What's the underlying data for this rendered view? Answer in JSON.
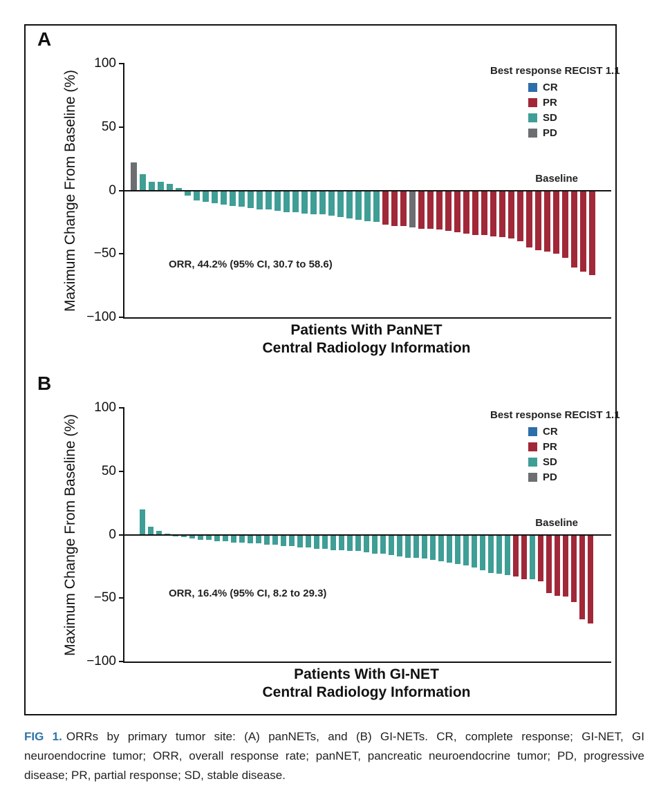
{
  "figure": {
    "panel_a_label": "A",
    "panel_b_label": "B",
    "caption": {
      "tag": "FIG 1.",
      "text": "ORRs by primary tumor site: (A) panNETs, and (B) GI-NETs. CR, complete response; GI-NET, GI neuroendocrine tumor; ORR, overall response rate; panNET, pancreatic neuroendocrine tumor; PD, progressive disease; PR, partial response; SD, stable disease."
    }
  },
  "colors": {
    "CR": "#2d6eaa",
    "PR": "#a02838",
    "SD": "#3f9e96",
    "PD": "#6d6e71",
    "axis": "#111111",
    "caption_tag": "#2e74a8"
  },
  "chart_data": [
    {
      "type": "bar",
      "panel": "A",
      "ylabel": "Maximum Change From Baseline (%)",
      "xlabel_line1": "Patients With PanNET",
      "xlabel_line2": "Central Radiology Information",
      "ylim": [
        -100,
        100
      ],
      "yticks": [
        100,
        50,
        0,
        -50,
        -100
      ],
      "ytick_labels": [
        "100",
        "50",
        "0",
        "−50",
        "−100"
      ],
      "baseline_label": "Baseline",
      "annotation": "ORR, 44.2% (95% CI, 30.7 to 58.6)",
      "legend": {
        "title": "Best response RECIST 1.1",
        "entries": [
          "CR",
          "PR",
          "SD",
          "PD"
        ],
        "position": "top-right"
      },
      "bars": [
        {
          "v": 22,
          "r": "PD"
        },
        {
          "v": 13,
          "r": "SD"
        },
        {
          "v": 7,
          "r": "SD"
        },
        {
          "v": 7,
          "r": "SD"
        },
        {
          "v": 5,
          "r": "SD"
        },
        {
          "v": 2,
          "r": "SD"
        },
        {
          "v": -4,
          "r": "SD"
        },
        {
          "v": -8,
          "r": "SD"
        },
        {
          "v": -9,
          "r": "SD"
        },
        {
          "v": -10,
          "r": "SD"
        },
        {
          "v": -11,
          "r": "SD"
        },
        {
          "v": -12,
          "r": "SD"
        },
        {
          "v": -13,
          "r": "SD"
        },
        {
          "v": -14,
          "r": "SD"
        },
        {
          "v": -15,
          "r": "SD"
        },
        {
          "v": -15,
          "r": "SD"
        },
        {
          "v": -16,
          "r": "SD"
        },
        {
          "v": -17,
          "r": "SD"
        },
        {
          "v": -17,
          "r": "SD"
        },
        {
          "v": -18,
          "r": "SD"
        },
        {
          "v": -19,
          "r": "SD"
        },
        {
          "v": -19,
          "r": "SD"
        },
        {
          "v": -20,
          "r": "SD"
        },
        {
          "v": -21,
          "r": "SD"
        },
        {
          "v": -22,
          "r": "SD"
        },
        {
          "v": -23,
          "r": "SD"
        },
        {
          "v": -24,
          "r": "SD"
        },
        {
          "v": -25,
          "r": "SD"
        },
        {
          "v": -27,
          "r": "PR"
        },
        {
          "v": -28,
          "r": "PR"
        },
        {
          "v": -28,
          "r": "PR"
        },
        {
          "v": -29,
          "r": "PD"
        },
        {
          "v": -30,
          "r": "PR"
        },
        {
          "v": -30,
          "r": "PR"
        },
        {
          "v": -31,
          "r": "PR"
        },
        {
          "v": -32,
          "r": "PR"
        },
        {
          "v": -33,
          "r": "PR"
        },
        {
          "v": -34,
          "r": "PR"
        },
        {
          "v": -35,
          "r": "PR"
        },
        {
          "v": -35,
          "r": "PR"
        },
        {
          "v": -36,
          "r": "PR"
        },
        {
          "v": -37,
          "r": "PR"
        },
        {
          "v": -38,
          "r": "PR"
        },
        {
          "v": -40,
          "r": "PR"
        },
        {
          "v": -45,
          "r": "PR"
        },
        {
          "v": -47,
          "r": "PR"
        },
        {
          "v": -48,
          "r": "PR"
        },
        {
          "v": -50,
          "r": "PR"
        },
        {
          "v": -53,
          "r": "PR"
        },
        {
          "v": -61,
          "r": "PR"
        },
        {
          "v": -64,
          "r": "PR"
        },
        {
          "v": -67,
          "r": "PR"
        }
      ]
    },
    {
      "type": "bar",
      "panel": "B",
      "ylabel": "Maximum Change From Baseline (%)",
      "xlabel_line1": "Patients With GI-NET",
      "xlabel_line2": "Central Radiology Information",
      "ylim": [
        -100,
        100
      ],
      "yticks": [
        100,
        50,
        0,
        -50,
        -100
      ],
      "ytick_labels": [
        "100",
        "50",
        "0",
        "−50",
        "−100"
      ],
      "baseline_label": "Baseline",
      "annotation": "ORR, 16.4% (95% CI, 8.2 to 29.3)",
      "legend": {
        "title": "Best response RECIST 1.1",
        "entries": [
          "CR",
          "PR",
          "SD",
          "PD"
        ],
        "position": "top-right"
      },
      "bars": [
        {
          "v": 20,
          "r": "SD"
        },
        {
          "v": 6,
          "r": "SD"
        },
        {
          "v": 3,
          "r": "SD"
        },
        {
          "v": 1,
          "r": "SD"
        },
        {
          "v": -1,
          "r": "SD"
        },
        {
          "v": -2,
          "r": "SD"
        },
        {
          "v": -3,
          "r": "SD"
        },
        {
          "v": -4,
          "r": "SD"
        },
        {
          "v": -4,
          "r": "SD"
        },
        {
          "v": -5,
          "r": "SD"
        },
        {
          "v": -5,
          "r": "SD"
        },
        {
          "v": -6,
          "r": "SD"
        },
        {
          "v": -6,
          "r": "SD"
        },
        {
          "v": -7,
          "r": "SD"
        },
        {
          "v": -7,
          "r": "SD"
        },
        {
          "v": -8,
          "r": "SD"
        },
        {
          "v": -8,
          "r": "SD"
        },
        {
          "v": -9,
          "r": "SD"
        },
        {
          "v": -9,
          "r": "SD"
        },
        {
          "v": -10,
          "r": "SD"
        },
        {
          "v": -10,
          "r": "SD"
        },
        {
          "v": -11,
          "r": "SD"
        },
        {
          "v": -11,
          "r": "SD"
        },
        {
          "v": -12,
          "r": "SD"
        },
        {
          "v": -12,
          "r": "SD"
        },
        {
          "v": -13,
          "r": "SD"
        },
        {
          "v": -13,
          "r": "SD"
        },
        {
          "v": -14,
          "r": "SD"
        },
        {
          "v": -15,
          "r": "SD"
        },
        {
          "v": -15,
          "r": "SD"
        },
        {
          "v": -16,
          "r": "SD"
        },
        {
          "v": -17,
          "r": "SD"
        },
        {
          "v": -18,
          "r": "SD"
        },
        {
          "v": -18,
          "r": "SD"
        },
        {
          "v": -19,
          "r": "SD"
        },
        {
          "v": -20,
          "r": "SD"
        },
        {
          "v": -21,
          "r": "SD"
        },
        {
          "v": -22,
          "r": "SD"
        },
        {
          "v": -23,
          "r": "SD"
        },
        {
          "v": -24,
          "r": "SD"
        },
        {
          "v": -26,
          "r": "SD"
        },
        {
          "v": -28,
          "r": "SD"
        },
        {
          "v": -30,
          "r": "SD"
        },
        {
          "v": -31,
          "r": "SD"
        },
        {
          "v": -32,
          "r": "SD"
        },
        {
          "v": -33,
          "r": "PR"
        },
        {
          "v": -35,
          "r": "PR"
        },
        {
          "v": -35,
          "r": "SD"
        },
        {
          "v": -37,
          "r": "PR"
        },
        {
          "v": -46,
          "r": "PR"
        },
        {
          "v": -48,
          "r": "PR"
        },
        {
          "v": -49,
          "r": "PR"
        },
        {
          "v": -53,
          "r": "PR"
        },
        {
          "v": -67,
          "r": "PR"
        },
        {
          "v": -70,
          "r": "PR"
        }
      ]
    }
  ]
}
